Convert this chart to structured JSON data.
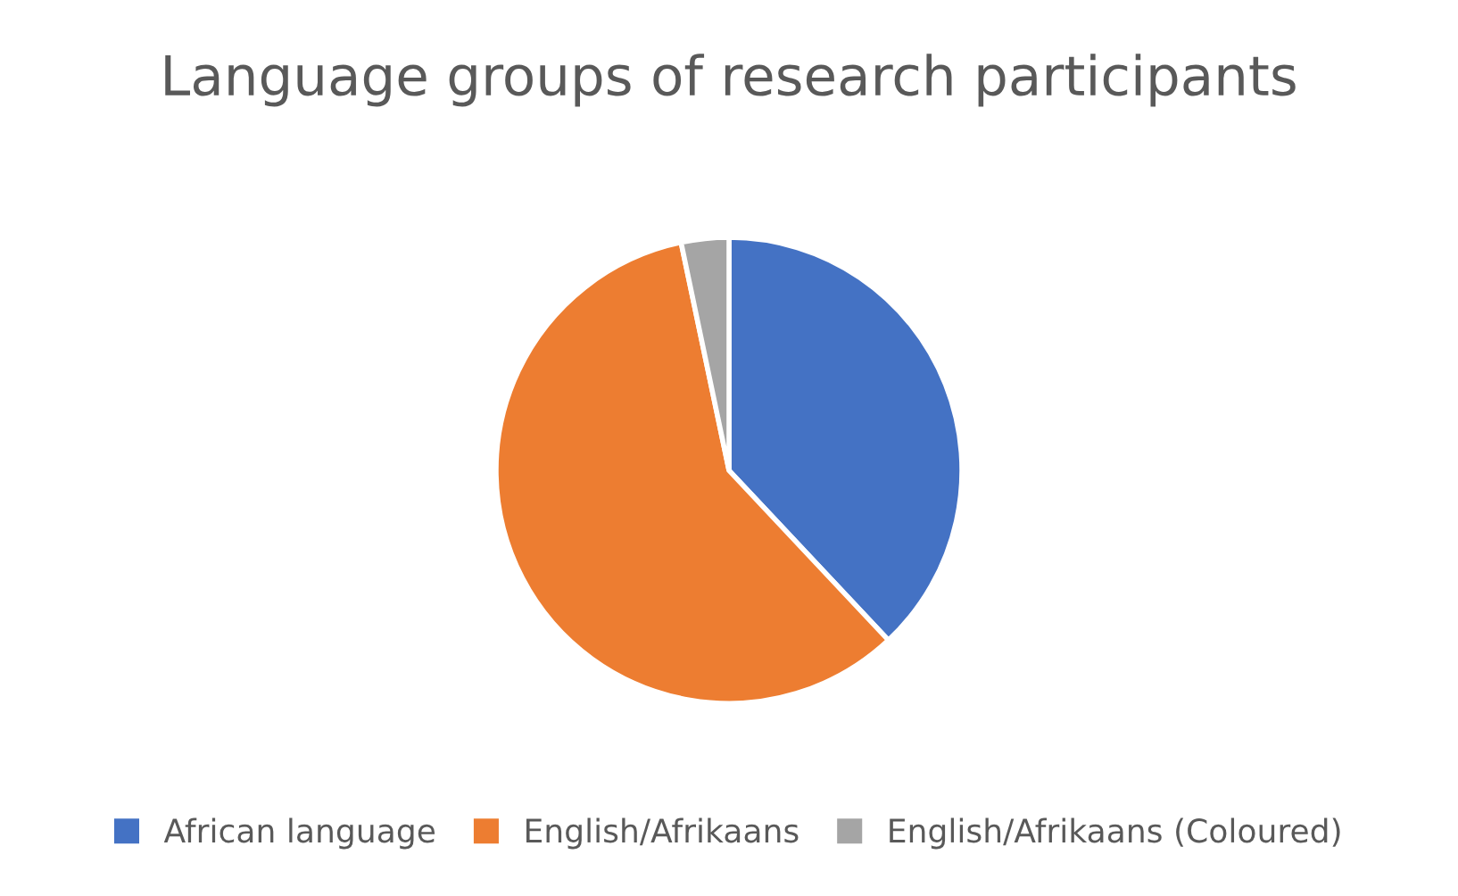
{
  "chart_data": {
    "type": "pie",
    "title": "Language groups of research participants",
    "categories": [
      "African language",
      "English/Afrikaans",
      "English/Afrikaans (Coloured)"
    ],
    "values": [
      38,
      58.7,
      3.3
    ],
    "colors": [
      "#4472c4",
      "#ed7d31",
      "#a5a5a5"
    ],
    "legend": "bottom"
  }
}
